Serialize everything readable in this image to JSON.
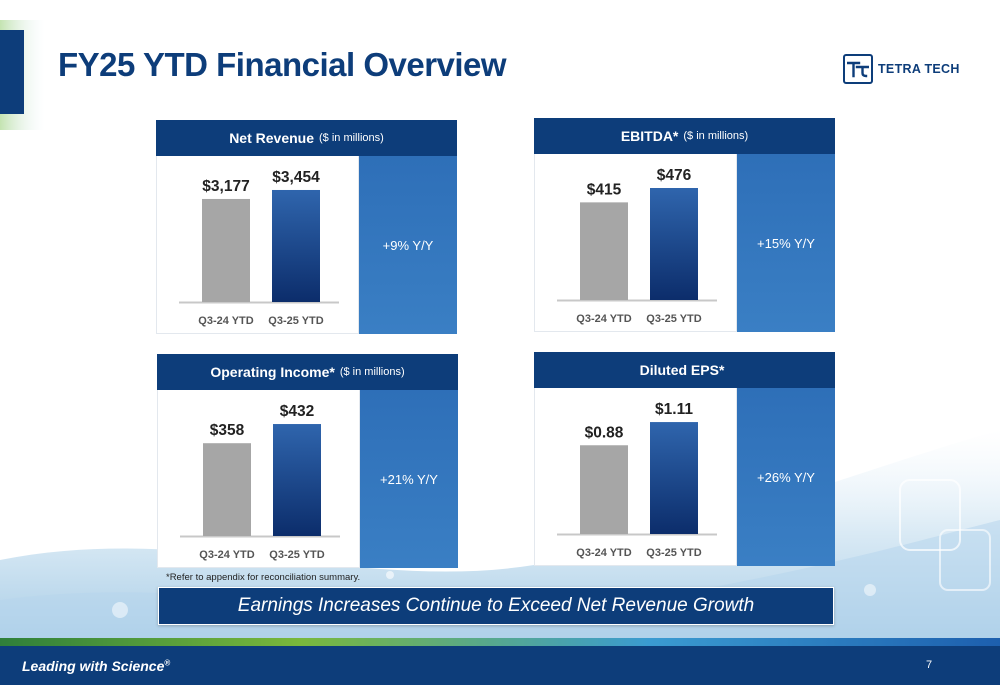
{
  "slide": {
    "title": "FY25 YTD Financial Overview",
    "footnote": "*Refer to appendix for reconciliation summary.",
    "banner": "Earnings Increases Continue to Exceed Net Revenue Growth",
    "tagline": "Leading with Science",
    "tagline_mark": "®",
    "page_number": "7"
  },
  "logo": {
    "text": "TETRA TECH",
    "icon": "tt-logo-icon"
  },
  "colors": {
    "brand_navy": "#0d3d7a",
    "growth_blue": "#3a7fc4",
    "prior_bar": "#a6a6a6",
    "current_bar_top": "#2f65ad",
    "current_bar_bottom": "#0c2d6b"
  },
  "chart_data": [
    {
      "type": "bar",
      "title": "Net Revenue",
      "subtitle": "($ in millions)",
      "categories": [
        "Q3-24 YTD",
        "Q3-25 YTD"
      ],
      "values": [
        3177,
        3454
      ],
      "labels": [
        "$3,177",
        "$3,454"
      ],
      "growth": "+9% Y/Y",
      "ylim": [
        0,
        3700
      ]
    },
    {
      "type": "bar",
      "title": "EBITDA*",
      "subtitle": "($ in millions)",
      "categories": [
        "Q3-24 YTD",
        "Q3-25 YTD"
      ],
      "values": [
        415,
        476
      ],
      "labels": [
        "$415",
        "$476"
      ],
      "growth": "+15% Y/Y",
      "ylim": [
        0,
        510
      ]
    },
    {
      "type": "bar",
      "title": "Operating Income*",
      "subtitle": "($ in millions)",
      "categories": [
        "Q3-24 YTD",
        "Q3-25 YTD"
      ],
      "values": [
        358,
        432
      ],
      "labels": [
        "$358",
        "$432"
      ],
      "growth": "+21% Y/Y",
      "ylim": [
        0,
        463
      ]
    },
    {
      "type": "bar",
      "title": "Diluted EPS*",
      "subtitle": "",
      "categories": [
        "Q3-24 YTD",
        "Q3-25 YTD"
      ],
      "values": [
        0.88,
        1.11
      ],
      "labels": [
        "$0.88",
        "$1.11"
      ],
      "growth": "+26% Y/Y",
      "ylim": [
        0,
        1.19
      ]
    }
  ]
}
